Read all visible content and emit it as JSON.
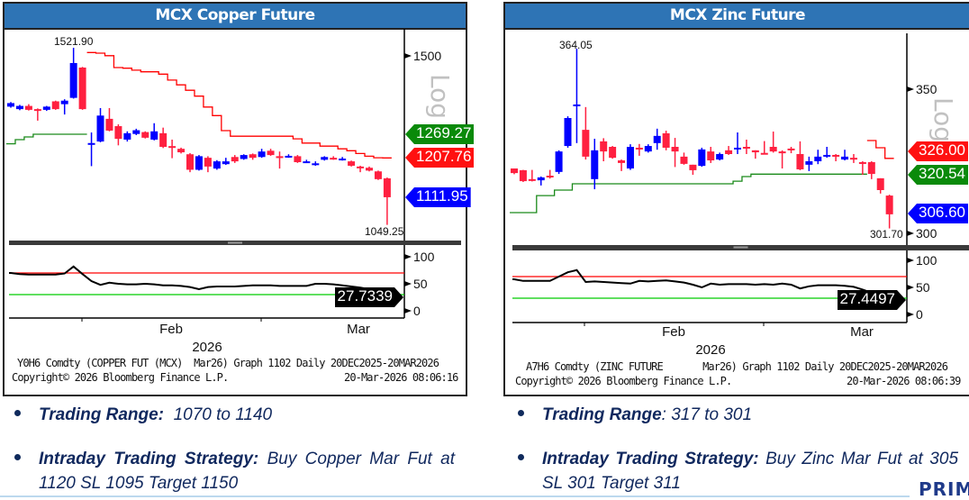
{
  "copper": {
    "title": "MCX Copper Future",
    "scale_label": "Log",
    "y_ticks": [
      "1500"
    ],
    "rsi_ticks": [
      "100",
      "50",
      "0"
    ],
    "high_label": "1521.90",
    "low_label": "1049.25",
    "tags": {
      "green": "1269.27",
      "red": "1207.76",
      "blue": "1111.95",
      "rsi": "27.7339"
    },
    "x_months": [
      "Feb",
      "Mar"
    ],
    "x_year": "2026",
    "info_line1": "Y0H6 Comdty (COPPER FUT (MCX)  Mar26) Graph 1102 Daily 20DEC2025-20MAR2026",
    "info_copyright": "Copyright© 2026 Bloomberg Finance L.P.",
    "info_timestamp": "20-Mar-2026 08:06:16",
    "bullets": {
      "range_label": "Trading Range:",
      "range_value": "1070 to 1140",
      "strategy_label": "Intraday Trading Strategy:",
      "strategy_value": "Buy Copper Mar Fut at 1120 SL 1095  Target 1150"
    }
  },
  "zinc": {
    "title": "MCX Zinc Future",
    "scale_label": "Log",
    "y_ticks": [
      "350",
      "300"
    ],
    "rsi_ticks": [
      "100",
      "50",
      "0"
    ],
    "high_label": "364.05",
    "low_label": "301.70",
    "tags": {
      "red": "326.00",
      "green": "320.54",
      "blue": "306.60",
      "rsi": "27.4497"
    },
    "x_months": [
      "Feb",
      "Mar"
    ],
    "x_year": "2026",
    "info_line1": "A7H6 Comdty (ZINC FUTURE       Mar26) Graph 1102 Daily 20DEC2025-20MAR2026",
    "info_copyright": "Copyright© 2026 Bloomberg Finance L.P.",
    "info_timestamp": "20-Mar-2026 08:06:39",
    "bullets": {
      "range_label": "Trading Range",
      "range_value": ":  317 to  301",
      "strategy_label": "Intraday Trading Strategy:",
      "strategy_value": "Buy Zinc Mar Fut at 305 SL 301 Target 311"
    }
  },
  "footer_logo": "PRIM",
  "colors": {
    "header": "#2e74b5",
    "up": "#0000ff",
    "down": "#ff2040",
    "support": "#1a8a1a",
    "resistance": "#ff0000",
    "rsi_upper": "#ff0000",
    "rsi_lower": "#00cc00",
    "text_navy": "#10285e"
  },
  "chart_data": [
    {
      "type": "candlestick",
      "title": "MCX Copper Future",
      "period": "20DEC2025-20MAR2026, Daily",
      "y_scale": "log",
      "x_ticks": [
        "Feb",
        "Mar"
      ],
      "x_year": "2026",
      "y_ticks": [
        1500
      ],
      "up_color": "#0000ff",
      "down_color": "#ff2040",
      "ohlc": [
        [
          1345,
          1358,
          1342,
          1355
        ],
        [
          1338,
          1350,
          1335,
          1347
        ],
        [
          1347,
          1352,
          1334,
          1336
        ],
        [
          1338,
          1340,
          1306,
          1334
        ],
        [
          1336,
          1347,
          1333,
          1345
        ],
        [
          1360,
          1362,
          1336,
          1338
        ],
        [
          1352,
          1366,
          1323,
          1362
        ],
        [
          1370,
          1521.9,
          1368,
          1474
        ],
        [
          1460,
          1462,
          1336,
          1338
        ],
        [
          1244,
          1274,
          1187,
          1246
        ],
        [
          1250,
          1341,
          1248,
          1320
        ],
        [
          1311,
          1341,
          1277,
          1279
        ],
        [
          1291,
          1296,
          1240,
          1257
        ],
        [
          1255,
          1277,
          1250,
          1272
        ],
        [
          1270,
          1284,
          1267,
          1280
        ],
        [
          1275,
          1277,
          1258,
          1260
        ],
        [
          1255,
          1299,
          1253,
          1277
        ],
        [
          1272,
          1287,
          1233,
          1236
        ],
        [
          1238,
          1255,
          1207,
          1234
        ],
        [
          1231,
          1234,
          1219,
          1222
        ],
        [
          1217,
          1220,
          1172,
          1178
        ],
        [
          1178,
          1215,
          1176,
          1212
        ],
        [
          1208,
          1212,
          1172,
          1186
        ],
        [
          1181,
          1202,
          1178,
          1199
        ],
        [
          1192,
          1208,
          1190,
          1199
        ],
        [
          1210,
          1215,
          1195,
          1199
        ],
        [
          1205,
          1217,
          1203,
          1215
        ],
        [
          1217,
          1219,
          1203,
          1208
        ],
        [
          1210,
          1231,
          1208,
          1224
        ],
        [
          1226,
          1231,
          1213,
          1215
        ],
        [
          1212,
          1224,
          1181,
          1208
        ],
        [
          1210,
          1217,
          1208,
          1213
        ],
        [
          1212,
          1215,
          1195,
          1197
        ],
        [
          1197,
          1203,
          1195,
          1199
        ],
        [
          1192,
          1199,
          1188,
          1194
        ],
        [
          1203,
          1212,
          1201,
          1210
        ],
        [
          1208,
          1212,
          1203,
          1205
        ],
        [
          1203,
          1210,
          1201,
          1206
        ],
        [
          1199,
          1201,
          1186,
          1188
        ],
        [
          1186,
          1188,
          1172,
          1183
        ],
        [
          1183,
          1186,
          1174,
          1176
        ],
        [
          1174,
          1176,
          1153,
          1155
        ],
        [
          1157,
          1159,
          1049.25,
          1111.95
        ]
      ],
      "resistance_line": [
        null,
        null,
        null,
        null,
        null,
        null,
        null,
        null,
        null,
        1507,
        1505,
        1497,
        1460,
        1458,
        1452,
        1447,
        1447,
        1440,
        1422,
        1408,
        1392,
        1375,
        1344,
        1320,
        1279,
        1264,
        1264,
        1264,
        1264,
        1264,
        1264,
        1264,
        1257,
        1246,
        1246,
        1238,
        1238,
        1231,
        1226,
        1219,
        1212,
        1208,
        1207.76
      ],
      "support_line": [
        1244,
        1255,
        1262,
        1269.27,
        1269.27,
        1269.27,
        1269.27,
        1269.27,
        1269.27,
        null,
        null,
        null,
        null,
        null,
        null,
        null,
        null,
        null,
        null,
        null,
        null,
        null,
        null,
        null,
        null,
        null,
        null,
        null,
        null,
        null,
        null,
        null,
        null,
        null,
        null,
        null,
        null,
        null,
        null,
        null,
        null,
        null,
        null
      ],
      "annotations": {
        "high": 1521.9,
        "low": 1049.25,
        "last_resistance": 1207.76,
        "support": 1269.27,
        "last_close": 1111.95
      },
      "rsi": {
        "ylim": [
          0,
          100
        ],
        "ticks": [
          100,
          50,
          0
        ],
        "upper": 70,
        "lower": 30,
        "last": 27.7339,
        "values": [
          70,
          68,
          67,
          67,
          67,
          67,
          69,
          82,
          68,
          55,
          48,
          52,
          50,
          49,
          49,
          50,
          49,
          47,
          47,
          46,
          44,
          40,
          44,
          45,
          45,
          45,
          46,
          47,
          47,
          47,
          46,
          46,
          46,
          46,
          50,
          50,
          49,
          47,
          45,
          43,
          40,
          35,
          27.7339
        ]
      }
    },
    {
      "type": "candlestick",
      "title": "MCX Zinc Future",
      "period": "20DEC2025-20MAR2026, Daily",
      "y_scale": "log",
      "x_ticks": [
        "Feb",
        "Mar"
      ],
      "x_year": "2026",
      "y_ticks": [
        350,
        300
      ],
      "up_color": "#0000ff",
      "down_color": "#ff2040",
      "ohlc": [
        [
          322.5,
          322.5,
          320.5,
          320.9
        ],
        [
          321.9,
          322,
          317.8,
          318.1
        ],
        [
          318.8,
          322,
          318,
          318.4
        ],
        [
          318.4,
          319.7,
          316.6,
          319.4
        ],
        [
          320,
          322,
          319,
          319.4
        ],
        [
          321.3,
          328.8,
          320.6,
          328.4
        ],
        [
          330.3,
          340.6,
          329.7,
          340
        ],
        [
          344.4,
          364.05,
          331.3,
          344.7
        ],
        [
          335.9,
          343.8,
          325.6,
          326.6
        ],
        [
          318.8,
          332.8,
          315.3,
          328.8
        ],
        [
          331.9,
          333,
          325,
          328.4
        ],
        [
          330,
          330.3,
          325.9,
          326.2
        ],
        [
          325.3,
          325.6,
          321.6,
          324.4
        ],
        [
          322.5,
          330.9,
          322,
          330
        ],
        [
          329.7,
          331,
          326.9,
          329.1
        ],
        [
          328.4,
          330.9,
          328,
          330.3
        ],
        [
          331.3,
          336.3,
          329,
          333.8
        ],
        [
          334.7,
          335.6,
          328.8,
          329.7
        ],
        [
          330,
          333.1,
          323,
          328.4
        ],
        [
          326.6,
          328,
          323.8,
          324.1
        ],
        [
          323.8,
          323.8,
          320.3,
          321.9
        ],
        [
          323.4,
          329.7,
          323.1,
          329.1
        ],
        [
          328.4,
          330,
          324.4,
          325.3
        ],
        [
          325.6,
          328,
          325.3,
          327.5
        ],
        [
          328.8,
          330.3,
          327.2,
          327.5
        ],
        [
          329.4,
          335,
          327.5,
          329.7
        ],
        [
          330,
          332.5,
          327.5,
          329.4
        ],
        [
          328.8,
          328.8,
          325.9,
          328.1
        ],
        [
          327.9,
          332,
          327.5,
          327.8
        ],
        [
          330,
          335.3,
          328,
          328.4
        ],
        [
          328.4,
          328.8,
          322.5,
          328.1
        ],
        [
          329.4,
          330,
          327.8,
          329
        ],
        [
          327.5,
          331.9,
          321.9,
          322.2
        ],
        [
          323.8,
          326.6,
          321.6,
          325
        ],
        [
          325,
          329,
          324,
          326.6
        ],
        [
          326.6,
          330,
          326.2,
          327.2
        ],
        [
          327.2,
          327.5,
          325,
          326.9
        ],
        [
          325.6,
          329,
          325.3,
          326.6
        ],
        [
          326.2,
          327.5,
          324.4,
          325.9
        ],
        [
          324.7,
          325,
          320.3,
          324.1
        ],
        [
          324.7,
          325,
          318.8,
          320.6
        ],
        [
          319.1,
          319.1,
          313.8,
          315
        ],
        [
          313.1,
          313.4,
          301.7,
          306.6
        ]
      ],
      "resistance_line": [
        null,
        null,
        null,
        null,
        null,
        null,
        null,
        null,
        null,
        null,
        null,
        null,
        null,
        null,
        null,
        null,
        null,
        null,
        null,
        null,
        null,
        null,
        null,
        null,
        null,
        null,
        null,
        null,
        null,
        null,
        null,
        null,
        null,
        null,
        null,
        null,
        null,
        null,
        null,
        null,
        332.2,
        329.7,
        326.0
      ],
      "support_line": [
        307.2,
        307.2,
        307.2,
        313.1,
        313.1,
        315,
        315,
        317.2,
        317.2,
        317.2,
        317.2,
        317.2,
        317.2,
        317.2,
        317.2,
        317.2,
        317.2,
        317.2,
        317.2,
        317.2,
        317.2,
        317.2,
        317.2,
        317.2,
        317.2,
        318.1,
        319.7,
        320.54,
        320.54,
        320.54,
        320.54,
        320.54,
        320.54,
        320.54,
        320.54,
        320.54,
        320.54,
        320.54,
        320.54,
        320.54,
        null,
        null,
        null
      ],
      "annotations": {
        "high": 364.05,
        "low": 301.7,
        "last_resistance": 326.0,
        "support": 320.54,
        "last_close": 306.6
      },
      "rsi": {
        "ylim": [
          0,
          100
        ],
        "ticks": [
          100,
          50,
          0
        ],
        "upper": 70,
        "lower": 30,
        "last": 27.4497,
        "values": [
          65,
          62,
          62,
          62,
          62,
          70,
          78,
          82,
          60,
          61,
          60,
          59,
          58,
          57,
          62,
          61,
          62,
          63,
          61,
          59,
          55,
          50,
          57,
          55,
          56,
          56,
          56,
          55,
          56,
          55,
          57,
          55,
          48,
          52,
          54,
          54,
          54,
          53,
          51,
          46,
          40,
          34,
          27.4497
        ]
      }
    }
  ]
}
